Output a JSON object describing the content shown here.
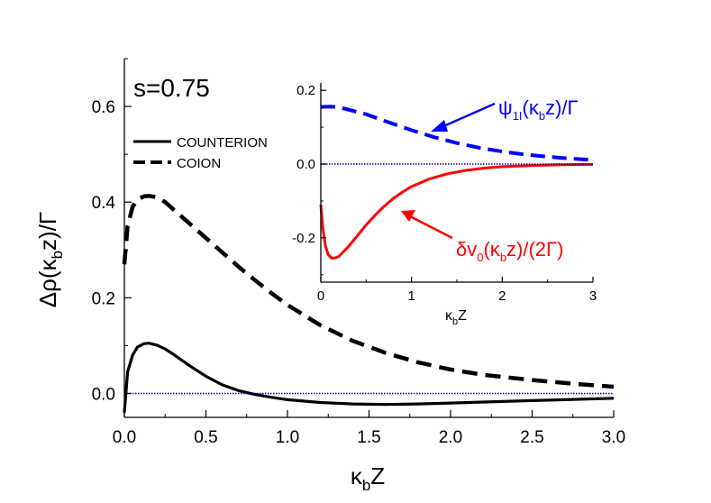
{
  "chart_data": [
    {
      "type": "line",
      "annotation": "s=0.75",
      "xlabel": "κ_bZ",
      "ylabel": "Δρ(κ_bz)/Γ",
      "xlim": [
        0.0,
        3.0
      ],
      "ylim": [
        -0.05,
        0.7
      ],
      "x_ticks": [
        "0.0",
        "0.5",
        "1.0",
        "1.5",
        "2.0",
        "2.5",
        "3.0"
      ],
      "y_ticks": [
        "0.0",
        "0.2",
        "0.4",
        "0.6"
      ],
      "legend": {
        "placement": "top-left",
        "entries": [
          "COUNTERION",
          "COION"
        ]
      },
      "series": [
        {
          "name": "COUNTERION",
          "style": "solid",
          "color": "#000000",
          "x": [
            0.0,
            0.02,
            0.05,
            0.08,
            0.12,
            0.15,
            0.2,
            0.25,
            0.3,
            0.4,
            0.5,
            0.6,
            0.7,
            0.8,
            0.9,
            1.0,
            1.2,
            1.4,
            1.6,
            1.8,
            2.0,
            2.5,
            3.0
          ],
          "y": [
            -0.04,
            0.045,
            0.08,
            0.097,
            0.104,
            0.105,
            0.101,
            0.093,
            0.082,
            0.058,
            0.036,
            0.018,
            0.006,
            -0.002,
            -0.008,
            -0.013,
            -0.019,
            -0.022,
            -0.023,
            -0.022,
            -0.02,
            -0.015,
            -0.01
          ]
        },
        {
          "name": "COION",
          "style": "dashed",
          "color": "#000000",
          "x": [
            0.0,
            0.02,
            0.05,
            0.08,
            0.12,
            0.15,
            0.2,
            0.25,
            0.3,
            0.4,
            0.5,
            0.6,
            0.7,
            0.8,
            0.9,
            1.0,
            1.2,
            1.4,
            1.6,
            1.8,
            2.0,
            2.2,
            2.5,
            2.8,
            3.0
          ],
          "y": [
            0.27,
            0.35,
            0.39,
            0.405,
            0.412,
            0.413,
            0.41,
            0.4,
            0.385,
            0.355,
            0.325,
            0.295,
            0.265,
            0.237,
            0.21,
            0.185,
            0.143,
            0.11,
            0.085,
            0.065,
            0.05,
            0.039,
            0.028,
            0.019,
            0.014
          ]
        },
        {
          "name": "zero",
          "style": "dotted",
          "color": "#00008b",
          "x": [
            0.0,
            3.0
          ],
          "y": [
            0.0,
            0.0
          ]
        }
      ]
    },
    {
      "type": "line",
      "inset": true,
      "xlabel": "κ_bZ",
      "xlim": [
        0.0,
        3.0
      ],
      "ylim": [
        -0.32,
        0.22
      ],
      "x_ticks": [
        "0",
        "1",
        "2",
        "3"
      ],
      "y_ticks": [
        "0.2",
        "0.0",
        "-0.2"
      ],
      "annotations": [
        {
          "text_main": "ψ",
          "text_sub": "1I",
          "text_rest": "(κ",
          "text_sub2": "b",
          "text_end": "z)/Γ",
          "color": "#0000ff"
        },
        {
          "text_main": "δv",
          "text_sub": "0",
          "text_rest": "(κ",
          "text_sub2": "b",
          "text_end": "z)/(2Γ)",
          "color": "#ff0000"
        }
      ],
      "series": [
        {
          "name": "ψ1I",
          "style": "dashed",
          "color": "#0000ff",
          "x": [
            0.0,
            0.1,
            0.2,
            0.3,
            0.5,
            0.75,
            1.0,
            1.25,
            1.5,
            1.75,
            2.0,
            2.25,
            2.5,
            2.75,
            3.0
          ],
          "y": [
            0.155,
            0.156,
            0.154,
            0.148,
            0.135,
            0.113,
            0.092,
            0.073,
            0.057,
            0.044,
            0.034,
            0.026,
            0.02,
            0.015,
            0.011
          ]
        },
        {
          "name": "δv0",
          "style": "solid",
          "color": "#ff0000",
          "x": [
            0.0,
            0.02,
            0.05,
            0.08,
            0.12,
            0.15,
            0.2,
            0.3,
            0.4,
            0.5,
            0.6,
            0.7,
            0.8,
            0.9,
            1.0,
            1.2,
            1.4,
            1.6,
            1.8,
            2.0,
            2.3,
            2.6,
            3.0
          ],
          "y": [
            -0.11,
            -0.17,
            -0.22,
            -0.245,
            -0.255,
            -0.255,
            -0.25,
            -0.225,
            -0.195,
            -0.165,
            -0.138,
            -0.114,
            -0.093,
            -0.076,
            -0.061,
            -0.04,
            -0.026,
            -0.017,
            -0.011,
            -0.007,
            -0.004,
            -0.002,
            -0.001
          ]
        },
        {
          "name": "zero",
          "style": "dotted",
          "color": "#00008b",
          "x": [
            0.0,
            3.0
          ],
          "y": [
            0.0,
            0.0
          ]
        }
      ]
    }
  ]
}
